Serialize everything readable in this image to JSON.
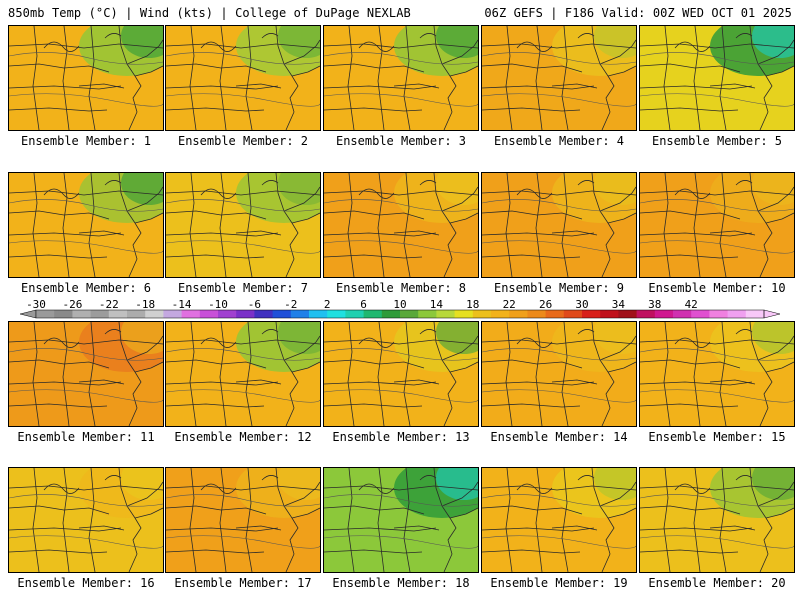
{
  "header": {
    "left": "850mb Temp (°C) | Wind (kts) | College of DuPage NEXLAB",
    "right": "06Z GEFS | F186 Valid: 00Z WED OCT 01 2025"
  },
  "panels": [
    {
      "label": "Ensemble Member: 1",
      "bg": "#f2b21a",
      "blobs": [
        {
          "c": "#8cc83a",
          "op": 0.8
        },
        {
          "c": "#2f9b3a",
          "op": 0.6
        }
      ]
    },
    {
      "label": "Ensemble Member: 2",
      "bg": "#f2b21a",
      "blobs": [
        {
          "c": "#9ccc3a",
          "op": 0.8
        },
        {
          "c": "#4aa83a",
          "op": 0.5
        }
      ]
    },
    {
      "label": "Ensemble Member: 3",
      "bg": "#f2b21a",
      "blobs": [
        {
          "c": "#8cc83a",
          "op": 0.8
        },
        {
          "c": "#2f9b3a",
          "op": 0.6
        }
      ]
    },
    {
      "label": "Ensemble Member: 4",
      "bg": "#f0a81a",
      "blobs": [
        {
          "c": "#e8cc20",
          "op": 0.6
        },
        {
          "c": "#9ccc3a",
          "op": 0.4
        }
      ]
    },
    {
      "label": "Ensemble Member: 5",
      "bg": "#e6d21e",
      "blobs": [
        {
          "c": "#2f9b3a",
          "op": 0.85
        },
        {
          "c": "#20c8b0",
          "op": 0.7
        }
      ]
    },
    {
      "label": "Ensemble Member: 6",
      "bg": "#f2b21a",
      "blobs": [
        {
          "c": "#8cc83a",
          "op": 0.7
        },
        {
          "c": "#2f9b3a",
          "op": 0.6
        }
      ]
    },
    {
      "label": "Ensemble Member: 7",
      "bg": "#ecc01c",
      "blobs": [
        {
          "c": "#8cc83a",
          "op": 0.7
        },
        {
          "c": "#5aa83a",
          "op": 0.4
        }
      ]
    },
    {
      "label": "Ensemble Member: 8",
      "bg": "#f0a01a",
      "blobs": [
        {
          "c": "#ecc01c",
          "op": 0.6
        },
        {
          "c": "#e8d020",
          "op": 0.4
        }
      ]
    },
    {
      "label": "Ensemble Member: 9",
      "bg": "#f0a01a",
      "blobs": [
        {
          "c": "#ecc01c",
          "op": 0.6
        },
        {
          "c": "#e0d020",
          "op": 0.3
        }
      ]
    },
    {
      "label": "Ensemble Member: 10",
      "bg": "#f0a01a",
      "blobs": [
        {
          "c": "#ecb81c",
          "op": 0.5
        },
        {
          "c": "#e8c820",
          "op": 0.3
        }
      ]
    },
    {
      "label": "Ensemble Member: 11",
      "bg": "#ee9a1a",
      "blobs": [
        {
          "c": "#e87020",
          "op": 0.6
        },
        {
          "c": "#ecc01c",
          "op": 0.5
        }
      ]
    },
    {
      "label": "Ensemble Member: 12",
      "bg": "#f2b21a",
      "blobs": [
        {
          "c": "#8cc83a",
          "op": 0.8
        },
        {
          "c": "#5aa83a",
          "op": 0.5
        }
      ]
    },
    {
      "label": "Ensemble Member: 13",
      "bg": "#f2b21a",
      "blobs": [
        {
          "c": "#e0d020",
          "op": 0.6
        },
        {
          "c": "#5aa83a",
          "op": 0.7
        }
      ]
    },
    {
      "label": "Ensemble Member: 14",
      "bg": "#f2ac1a",
      "blobs": [
        {
          "c": "#ecc01c",
          "op": 0.5
        },
        {
          "c": "#e8c820",
          "op": 0.4
        }
      ]
    },
    {
      "label": "Ensemble Member: 15",
      "bg": "#f2b21a",
      "blobs": [
        {
          "c": "#e8d020",
          "op": 0.5
        },
        {
          "c": "#8cc83a",
          "op": 0.5
        }
      ]
    },
    {
      "label": "Ensemble Member: 16",
      "bg": "#ecc01c",
      "blobs": [
        {
          "c": "#f2b21a",
          "op": 0.5
        },
        {
          "c": "#e6d21e",
          "op": 0.4
        }
      ]
    },
    {
      "label": "Ensemble Member: 17",
      "bg": "#f0a01a",
      "blobs": [
        {
          "c": "#ecc01c",
          "op": 0.5
        },
        {
          "c": "#e8c820",
          "op": 0.4
        }
      ]
    },
    {
      "label": "Ensemble Member: 18",
      "bg": "#8cc83a",
      "blobs": [
        {
          "c": "#2f9b3a",
          "op": 0.85
        },
        {
          "c": "#20c8b0",
          "op": 0.7
        }
      ]
    },
    {
      "label": "Ensemble Member: 19",
      "bg": "#f2b21a",
      "blobs": [
        {
          "c": "#e6d21e",
          "op": 0.6
        },
        {
          "c": "#8cc83a",
          "op": 0.4
        }
      ]
    },
    {
      "label": "Ensemble Member: 20",
      "bg": "#ecc01c",
      "blobs": [
        {
          "c": "#8cc83a",
          "op": 0.7
        },
        {
          "c": "#3fa03a",
          "op": 0.5
        }
      ]
    }
  ],
  "colorbar": {
    "colors": [
      "#9a9a9a",
      "#8a8a8a",
      "#b0b0b0",
      "#9c9c9c",
      "#c0c0c0",
      "#acacac",
      "#d0d0d0",
      "#c4a8e0",
      "#e070e0",
      "#c850d8",
      "#a040d0",
      "#7a30c8",
      "#4030c0",
      "#2050d8",
      "#2080e8",
      "#20c0f0",
      "#20e0e0",
      "#20d0b0",
      "#20b870",
      "#2f9b3a",
      "#5aa83a",
      "#8cc83a",
      "#b8d83a",
      "#e6e020",
      "#ecc01c",
      "#f2b21a",
      "#f0a01a",
      "#ec8a1a",
      "#e86a1a",
      "#e04a1a",
      "#d8201a",
      "#c0101a",
      "#a0101a",
      "#c01060",
      "#d01890",
      "#d030b0",
      "#e050d0",
      "#f080e0",
      "#f0a0f0",
      "#f8c8f8"
    ],
    "ticks": [
      "-30",
      "-26",
      "-22",
      "-18",
      "-14",
      "-10",
      "-6",
      "-2",
      "2",
      "6",
      "10",
      "14",
      "18",
      "22",
      "26",
      "30",
      "34",
      "38",
      "42"
    ]
  }
}
